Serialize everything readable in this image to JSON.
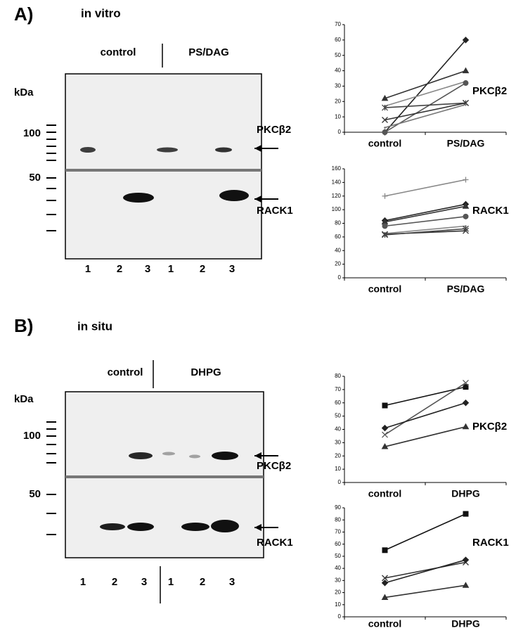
{
  "panels": [
    {
      "label": "A)",
      "title": "in vitro",
      "blot": {
        "groups": [
          "control",
          "PS/DAG"
        ],
        "kda_label": "kDa",
        "markers": [
          100,
          50
        ],
        "bands": [
          "PKCβ2",
          "RACK1"
        ],
        "lanes": [
          1,
          2,
          3,
          1,
          2,
          3
        ]
      },
      "charts": [
        {
          "type": "line",
          "label": "PKCβ2",
          "categories": [
            "control",
            "PS/DAG"
          ],
          "ylim": [
            0,
            70
          ],
          "yticks": [
            0,
            10,
            20,
            30,
            40,
            50,
            60,
            70
          ],
          "series": [
            {
              "color": "#222",
              "marker": "diamond",
              "values": [
                0,
                60
              ]
            },
            {
              "color": "#333",
              "marker": "triangle",
              "values": [
                22,
                40
              ]
            },
            {
              "color": "#888",
              "marker": "none",
              "values": [
                17,
                33
              ]
            },
            {
              "color": "#555",
              "marker": "circle",
              "values": [
                0,
                32
              ]
            },
            {
              "color": "#444",
              "marker": "star",
              "values": [
                16,
                19
              ]
            },
            {
              "color": "#333",
              "marker": "x",
              "values": [
                8,
                19
              ]
            },
            {
              "color": "#777",
              "marker": "none",
              "values": [
                3,
                18
              ]
            }
          ]
        },
        {
          "type": "line",
          "label": "RACK1",
          "categories": [
            "control",
            "PS/DAG"
          ],
          "ylim": [
            0,
            160
          ],
          "yticks": [
            0,
            20,
            40,
            60,
            80,
            100,
            120,
            140,
            160
          ],
          "series": [
            {
              "color": "#888",
              "marker": "plus",
              "values": [
                120,
                144
              ]
            },
            {
              "color": "#222",
              "marker": "diamond",
              "values": [
                84,
                108
              ]
            },
            {
              "color": "#333",
              "marker": "triangle",
              "values": [
                82,
                105
              ]
            },
            {
              "color": "#555",
              "marker": "circle",
              "values": [
                76,
                90
              ]
            },
            {
              "color": "#888",
              "marker": "none",
              "values": [
                65,
                76
              ]
            },
            {
              "color": "#333",
              "marker": "x",
              "values": [
                64,
                69
              ]
            },
            {
              "color": "#444",
              "marker": "star",
              "values": [
                63,
                72
              ]
            }
          ]
        }
      ]
    },
    {
      "label": "B)",
      "title": "in situ",
      "blot": {
        "groups": [
          "control",
          "DHPG"
        ],
        "kda_label": "kDa",
        "markers": [
          100,
          50
        ],
        "bands": [
          "PKCβ2",
          "RACK1"
        ],
        "lanes": [
          1,
          2,
          3,
          1,
          2,
          3
        ]
      },
      "charts": [
        {
          "type": "line",
          "label": "PKCβ2",
          "categories": [
            "control",
            "DHPG"
          ],
          "ylim": [
            0,
            80
          ],
          "yticks": [
            0,
            10,
            20,
            30,
            40,
            50,
            60,
            70,
            80
          ],
          "series": [
            {
              "color": "#111",
              "marker": "square",
              "values": [
                58,
                72
              ]
            },
            {
              "color": "#555",
              "marker": "x",
              "values": [
                36,
                75
              ]
            },
            {
              "color": "#222",
              "marker": "diamond",
              "values": [
                41,
                60
              ]
            },
            {
              "color": "#333",
              "marker": "triangle",
              "values": [
                27,
                42
              ]
            }
          ]
        },
        {
          "type": "line",
          "label": "RACK1",
          "categories": [
            "control",
            "DHPG"
          ],
          "ylim": [
            0,
            90
          ],
          "yticks": [
            0,
            10,
            20,
            30,
            40,
            50,
            60,
            70,
            80,
            90
          ],
          "series": [
            {
              "color": "#111",
              "marker": "square",
              "values": [
                55,
                85
              ]
            },
            {
              "color": "#333",
              "marker": "x",
              "values": [
                32,
                45
              ]
            },
            {
              "color": "#222",
              "marker": "diamond",
              "values": [
                28,
                47
              ]
            },
            {
              "color": "#333",
              "marker": "triangle",
              "values": [
                16,
                26
              ]
            }
          ]
        }
      ]
    }
  ]
}
